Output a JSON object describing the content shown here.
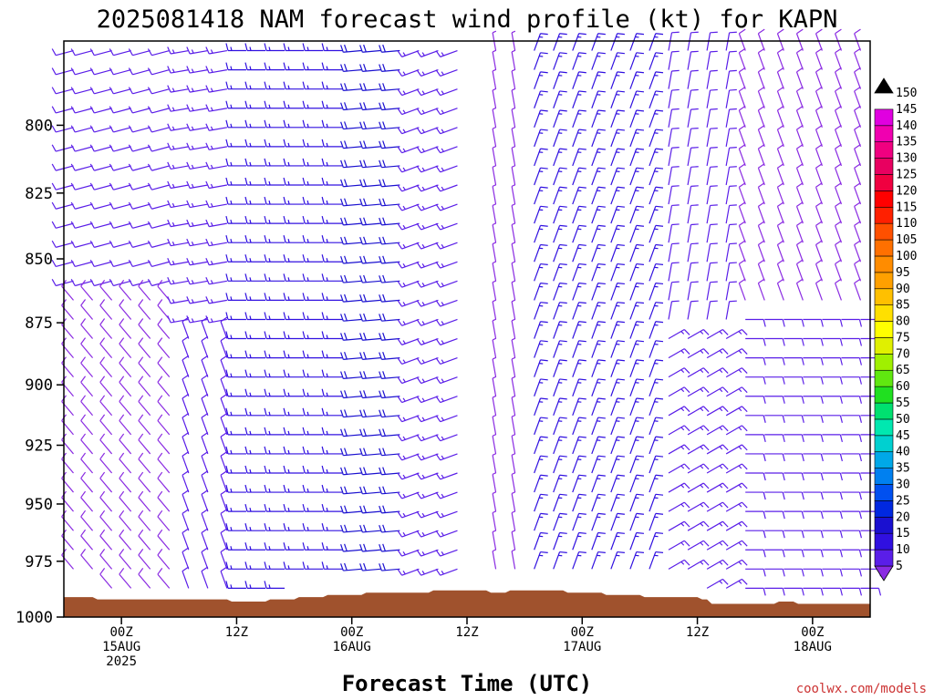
{
  "chart_data": {
    "type": "wind-barb time-height cross section",
    "title": "2025081418 NAM forecast wind profile (kt) for KAPN",
    "xlabel": "Forecast Time (UTC)",
    "credit": "coolwx.com/models",
    "y_axis": {
      "scale": "pressure, inverted (higher pressure at bottom)",
      "range": [
        770,
        1000
      ],
      "ticks": [
        800,
        825,
        850,
        875,
        900,
        925,
        950,
        975,
        1000
      ]
    },
    "x_axis": {
      "ticks": [
        {
          "hours": 6,
          "line1": "00Z",
          "line2": "15AUG",
          "line3": "2025"
        },
        {
          "hours": 18,
          "line1": "12Z",
          "line2": "",
          "line3": ""
        },
        {
          "hours": 30,
          "line1": "00Z",
          "line2": "16AUG",
          "line3": ""
        },
        {
          "hours": 42,
          "line1": "12Z",
          "line2": "",
          "line3": ""
        },
        {
          "hours": 54,
          "line1": "00Z",
          "line2": "17AUG",
          "line3": ""
        },
        {
          "hours": 66,
          "line1": "12Z",
          "line2": "",
          "line3": ""
        },
        {
          "hours": 78,
          "line1": "00Z",
          "line2": "18AUG",
          "line3": ""
        }
      ],
      "range_hours": [
        0,
        84
      ]
    },
    "colorbar": {
      "levels": [
        5,
        10,
        15,
        20,
        25,
        30,
        35,
        40,
        45,
        50,
        55,
        60,
        65,
        70,
        75,
        80,
        85,
        90,
        95,
        100,
        105,
        110,
        115,
        120,
        125,
        130,
        135,
        140,
        145,
        150
      ],
      "colors": [
        "#8a2be2",
        "#5a1ee8",
        "#3010e0",
        "#1a10d0",
        "#0028e0",
        "#0050f0",
        "#0080f0",
        "#00a8e8",
        "#00d0d0",
        "#00e8b0",
        "#00e070",
        "#20e020",
        "#60e810",
        "#a0f000",
        "#e0f000",
        "#ffff00",
        "#ffe000",
        "#ffc000",
        "#ffa000",
        "#ff8c00",
        "#ff7000",
        "#ff5000",
        "#ff2000",
        "#ff0000",
        "#f00040",
        "#e80060",
        "#f00080",
        "#f000b0",
        "#e000e0",
        "#000000"
      ]
    },
    "terrain": {
      "color": "#a0522d",
      "surface_pressure": [
        {
          "hours": 0,
          "p": 991
        },
        {
          "hours": 3,
          "p": 991
        },
        {
          "hours": 3.5,
          "p": 992
        },
        {
          "hours": 17,
          "p": 992
        },
        {
          "hours": 17.5,
          "p": 993
        },
        {
          "hours": 21,
          "p": 993
        },
        {
          "hours": 21.5,
          "p": 992
        },
        {
          "hours": 24,
          "p": 992
        },
        {
          "hours": 24.5,
          "p": 991
        },
        {
          "hours": 27,
          "p": 991
        },
        {
          "hours": 27.5,
          "p": 990
        },
        {
          "hours": 31,
          "p": 990
        },
        {
          "hours": 31.5,
          "p": 989
        },
        {
          "hours": 38,
          "p": 989
        },
        {
          "hours": 38.5,
          "p": 988
        },
        {
          "hours": 44,
          "p": 988
        },
        {
          "hours": 44.5,
          "p": 989
        },
        {
          "hours": 46,
          "p": 989
        },
        {
          "hours": 46.5,
          "p": 988
        },
        {
          "hours": 52,
          "p": 988
        },
        {
          "hours": 52.5,
          "p": 989
        },
        {
          "hours": 56,
          "p": 989
        },
        {
          "hours": 56.5,
          "p": 990
        },
        {
          "hours": 60,
          "p": 990
        },
        {
          "hours": 60.5,
          "p": 991
        },
        {
          "hours": 66,
          "p": 991
        },
        {
          "hours": 66.5,
          "p": 992
        },
        {
          "hours": 67,
          "p": 992
        },
        {
          "hours": 67.5,
          "p": 994
        },
        {
          "hours": 74,
          "p": 994
        },
        {
          "hours": 74.5,
          "p": 993
        },
        {
          "hours": 76,
          "p": 993
        },
        {
          "hours": 76.5,
          "p": 994
        },
        {
          "hours": 84,
          "p": 994
        }
      ]
    },
    "wind_regimes": [
      {
        "hours_from": 0,
        "hours_to": 12,
        "p_top": 770,
        "p_bot": 860,
        "dir_deg": 255,
        "speed_kt": 12
      },
      {
        "hours_from": 0,
        "hours_to": 12,
        "p_top": 860,
        "p_bot": 1000,
        "dir_deg": 320,
        "speed_kt": 8
      },
      {
        "hours_from": 12,
        "hours_to": 18,
        "p_top": 770,
        "p_bot": 880,
        "dir_deg": 260,
        "speed_kt": 14
      },
      {
        "hours_from": 12,
        "hours_to": 18,
        "p_top": 880,
        "p_bot": 1000,
        "dir_deg": 340,
        "speed_kt": 12
      },
      {
        "hours_from": 18,
        "hours_to": 30,
        "p_top": 770,
        "p_bot": 1000,
        "dir_deg": 270,
        "speed_kt": 15
      },
      {
        "hours_from": 30,
        "hours_to": 36,
        "p_top": 770,
        "p_bot": 1000,
        "dir_deg": 265,
        "speed_kt": 22
      },
      {
        "hours_from": 36,
        "hours_to": 43,
        "p_top": 770,
        "p_bot": 1000,
        "dir_deg": 250,
        "speed_kt": 14
      },
      {
        "hours_from": 44,
        "hours_to": 49,
        "p_top": 770,
        "p_bot": 1000,
        "dir_deg": 350,
        "speed_kt": 6
      },
      {
        "hours_from": 49,
        "hours_to": 62,
        "p_top": 770,
        "p_bot": 1000,
        "dir_deg": 20,
        "speed_kt": 16
      },
      {
        "hours_from": 62,
        "hours_to": 70,
        "p_top": 770,
        "p_bot": 880,
        "dir_deg": 10,
        "speed_kt": 10
      },
      {
        "hours_from": 62,
        "hours_to": 70,
        "p_top": 880,
        "p_bot": 1000,
        "dir_deg": 60,
        "speed_kt": 14
      },
      {
        "hours_from": 70,
        "hours_to": 84,
        "p_top": 770,
        "p_bot": 870,
        "dir_deg": 340,
        "speed_kt": 8
      },
      {
        "hours_from": 70,
        "hours_to": 84,
        "p_top": 870,
        "p_bot": 1000,
        "dir_deg": 90,
        "speed_kt": 12
      }
    ],
    "missing_column_hours": 44
  }
}
